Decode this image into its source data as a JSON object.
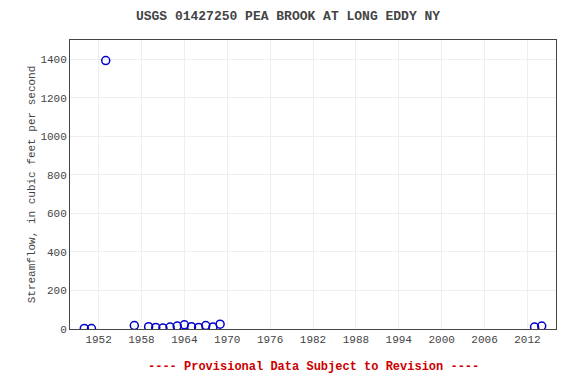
{
  "chart_data": {
    "type": "scatter",
    "title": "USGS 01427250 PEA BROOK AT LONG EDDY NY",
    "ylabel": "Streamflow, in cubic feet per second",
    "x": [
      1950,
      1951,
      1953,
      1957,
      1959,
      1960,
      1961,
      1962,
      1963,
      1964,
      1965,
      1966,
      1967,
      1968,
      1969,
      2013,
      2014
    ],
    "values": [
      3,
      2,
      1393,
      18,
      12,
      8,
      5,
      10,
      15,
      22,
      12,
      8,
      18,
      10,
      25,
      10,
      15
    ],
    "color": "#0000cc",
    "marker": "circle-open",
    "xlim": [
      1948,
      2016
    ],
    "xticks": [
      1952,
      1958,
      1964,
      1970,
      1976,
      1982,
      1988,
      1994,
      2000,
      2006,
      2012
    ],
    "ylim": [
      0,
      1500
    ],
    "yticks": [
      0,
      200,
      400,
      600,
      800,
      1000,
      1200,
      1400
    ],
    "grid": true,
    "annotations": [
      {
        "text": "---- Provisional Data Subject to Revision ----",
        "color": "#cc0000"
      }
    ]
  }
}
